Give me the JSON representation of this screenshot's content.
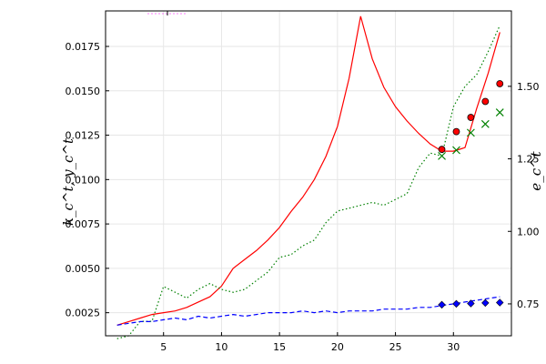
{
  "chart_data": {
    "type": "line",
    "title": "",
    "xlabel": "",
    "ylabel_left": "k_c^t, y_c^t",
    "ylabel_right": "e_c^t",
    "xlim": [
      0,
      35
    ],
    "ylim_left": [
      0.0012,
      0.0195
    ],
    "ylim_right": [
      0.64,
      1.76
    ],
    "grid": true,
    "legend": "none",
    "x_ticks": [
      5,
      10,
      15,
      20,
      25,
      30
    ],
    "y_left_ticks": [
      "0.0025",
      "0.0050",
      "0.0075",
      "0.0100",
      "0.0125",
      "0.0150",
      "0.0175"
    ],
    "y_left_tick_values": [
      0.0025,
      0.005,
      0.0075,
      0.01,
      0.0125,
      0.015,
      0.0175
    ],
    "y_right_ticks": [
      "0.75",
      "1.00",
      "1.25",
      "1.50"
    ],
    "y_right_tick_values": [
      0.75,
      1.0,
      1.25,
      1.5
    ],
    "series": [
      {
        "axis": "left",
        "style": "solid",
        "color": "#ff0000",
        "x": [
          1,
          2,
          3,
          4,
          5,
          6,
          7,
          8,
          9,
          10,
          11,
          12,
          13,
          14,
          15,
          16,
          17,
          18,
          19,
          20,
          21,
          22,
          23,
          24,
          25,
          26,
          27,
          28,
          29,
          30,
          31,
          32,
          33,
          34
        ],
        "values": [
          0.0018,
          0.002,
          0.0022,
          0.0024,
          0.0025,
          0.0026,
          0.0028,
          0.0031,
          0.0034,
          0.004,
          0.005,
          0.0055,
          0.006,
          0.0066,
          0.0073,
          0.0082,
          0.009,
          0.01,
          0.0113,
          0.013,
          0.0157,
          0.0192,
          0.0168,
          0.0152,
          0.0141,
          0.0133,
          0.0126,
          0.012,
          0.0116,
          0.0116,
          0.0118,
          0.014,
          0.016,
          0.0183
        ]
      },
      {
        "axis": "right",
        "style": "dotted",
        "color": "#008000",
        "x": [
          1,
          2,
          3,
          4,
          5,
          6,
          7,
          8,
          9,
          10,
          11,
          12,
          13,
          14,
          15,
          16,
          17,
          18,
          19,
          20,
          21,
          22,
          23,
          24,
          25,
          26,
          27,
          28,
          29,
          30,
          31,
          32,
          33,
          34
        ],
        "values": [
          0.63,
          0.64,
          0.69,
          0.69,
          0.81,
          0.79,
          0.77,
          0.8,
          0.82,
          0.8,
          0.79,
          0.8,
          0.83,
          0.86,
          0.91,
          0.92,
          0.95,
          0.97,
          1.03,
          1.07,
          1.08,
          1.09,
          1.1,
          1.09,
          1.11,
          1.13,
          1.22,
          1.27,
          1.26,
          1.43,
          1.5,
          1.54,
          1.62,
          1.71
        ]
      },
      {
        "axis": "left",
        "style": "dashed",
        "color": "#0000ff",
        "x": [
          1,
          2,
          3,
          4,
          5,
          6,
          7,
          8,
          9,
          10,
          11,
          12,
          13,
          14,
          15,
          16,
          17,
          18,
          19,
          20,
          21,
          22,
          23,
          24,
          25,
          26,
          27,
          28,
          29,
          30,
          31,
          32,
          33,
          34
        ],
        "values": [
          0.0018,
          0.0019,
          0.002,
          0.002,
          0.0021,
          0.0022,
          0.0021,
          0.0023,
          0.0022,
          0.0023,
          0.0024,
          0.0023,
          0.0024,
          0.0025,
          0.0025,
          0.0025,
          0.0026,
          0.0025,
          0.0026,
          0.0025,
          0.0026,
          0.0026,
          0.0026,
          0.0027,
          0.0027,
          0.0027,
          0.0028,
          0.0028,
          0.0029,
          0.003,
          0.0031,
          0.0032,
          0.0033,
          0.0034
        ]
      }
    ],
    "markers": [
      {
        "axis": "left",
        "shape": "circle",
        "fill": "#ff0000",
        "stroke": "#000000",
        "x": [
          29.0,
          30.25,
          31.5,
          32.75,
          34.0
        ],
        "values": [
          0.0117,
          0.0127,
          0.0135,
          0.0144,
          0.0154
        ]
      },
      {
        "axis": "right",
        "shape": "cross",
        "stroke": "#008000",
        "x": [
          29.0,
          30.25,
          31.5,
          32.75,
          34.0
        ],
        "values": [
          1.26,
          1.28,
          1.34,
          1.37,
          1.41
        ]
      },
      {
        "axis": "left",
        "shape": "diamond",
        "fill": "#0000ff",
        "stroke": "#000000",
        "x": [
          29.0,
          30.25,
          31.5,
          32.75,
          34.0
        ],
        "values": [
          0.00295,
          0.003,
          0.00302,
          0.00305,
          0.00307
        ]
      }
    ]
  }
}
